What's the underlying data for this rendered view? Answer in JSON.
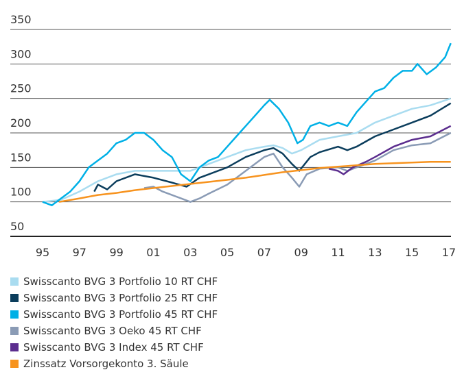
{
  "chart_data": {
    "type": "line",
    "xlim": [
      1995,
      2017
    ],
    "ylim": [
      50,
      350
    ],
    "xticks": [
      {
        "value": 1995,
        "label": "95"
      },
      {
        "value": 1997,
        "label": "97"
      },
      {
        "value": 1999,
        "label": "99"
      },
      {
        "value": 2001,
        "label": "01"
      },
      {
        "value": 2003,
        "label": "03"
      },
      {
        "value": 2005,
        "label": "05"
      },
      {
        "value": 2007,
        "label": "07"
      },
      {
        "value": 2009,
        "label": "09"
      },
      {
        "value": 2011,
        "label": "11"
      },
      {
        "value": 2013,
        "label": "13"
      },
      {
        "value": 2015,
        "label": "15"
      },
      {
        "value": 2017,
        "label": "17"
      }
    ],
    "yticks": [
      50,
      100,
      150,
      200,
      250,
      300,
      350
    ],
    "grid": true,
    "series": [
      {
        "name": "Swisscanto BVG 3 Portfolio 10 RT CHF",
        "color": "#a9dcf0",
        "x": [
          1995,
          1996,
          1997,
          1998,
          1999,
          2000,
          2001,
          2002,
          2003,
          2004,
          2005,
          2006,
          2007,
          2007.5,
          2008,
          2008.5,
          2009,
          2010,
          2011,
          2012,
          2013,
          2014,
          2015,
          2016,
          2017.1
        ],
        "values": [
          100,
          103,
          115,
          130,
          140,
          145,
          145,
          145,
          145,
          155,
          165,
          175,
          180,
          182,
          178,
          170,
          175,
          190,
          195,
          200,
          215,
          225,
          235,
          240,
          250
        ]
      },
      {
        "name": "Swisscanto BVG 3 Portfolio 25 RT CHF",
        "color": "#0b3d5c",
        "x": [
          1997.8,
          1998,
          1998.5,
          1999,
          2000,
          2001,
          2002,
          2002.8,
          2003.5,
          2004,
          2005,
          2006,
          2007,
          2007.5,
          2008,
          2008.5,
          2008.9,
          2009.5,
          2010,
          2011,
          2011.5,
          2012,
          2013,
          2014,
          2015,
          2016,
          2017.1
        ],
        "values": [
          115,
          125,
          118,
          130,
          140,
          135,
          128,
          122,
          135,
          140,
          150,
          165,
          175,
          178,
          170,
          155,
          145,
          165,
          172,
          180,
          175,
          180,
          195,
          205,
          215,
          225,
          243
        ]
      },
      {
        "name": "Swisscanto BVG 3 Portfolio 45 RT CHF",
        "color": "#00b0e6",
        "x": [
          1995,
          1995.5,
          1996,
          1996.5,
          1997,
          1997.5,
          1998,
          1998.5,
          1999,
          1999.5,
          2000,
          2000.5,
          2001,
          2001.5,
          2002,
          2002.5,
          2003,
          2003.5,
          2004,
          2004.5,
          2005,
          2005.5,
          2006,
          2006.5,
          2007,
          2007.3,
          2007.8,
          2008.3,
          2008.8,
          2009.1,
          2009.5,
          2010,
          2010.5,
          2011,
          2011.5,
          2012,
          2012.5,
          2013,
          2013.5,
          2014,
          2014.5,
          2015,
          2015.3,
          2015.8,
          2016.3,
          2016.8,
          2017.1
        ],
        "values": [
          100,
          95,
          105,
          115,
          130,
          150,
          160,
          170,
          185,
          190,
          200,
          200,
          190,
          175,
          165,
          140,
          130,
          150,
          160,
          165,
          180,
          195,
          210,
          225,
          240,
          248,
          235,
          215,
          185,
          190,
          210,
          215,
          210,
          215,
          210,
          230,
          245,
          260,
          265,
          280,
          290,
          290,
          300,
          285,
          295,
          310,
          330
        ]
      },
      {
        "name": "Swisscanto BVG 3 Oeko 45 RT CHF",
        "color": "#8a9bb5",
        "x": [
          2000.5,
          2001,
          2001.5,
          2002,
          2002.5,
          2003,
          2003.5,
          2004,
          2005,
          2006,
          2006.5,
          2007,
          2007.5,
          2008,
          2008.5,
          2008.9,
          2009.3,
          2010,
          2011,
          2011.5,
          2012,
          2013,
          2014,
          2015,
          2016,
          2017.1
        ],
        "values": [
          120,
          122,
          115,
          110,
          105,
          100,
          105,
          112,
          125,
          145,
          155,
          165,
          170,
          150,
          135,
          122,
          140,
          148,
          150,
          145,
          150,
          160,
          175,
          182,
          185,
          200
        ]
      },
      {
        "name": "Swisscanto BVG 3 Index 45 RT CHF",
        "color": "#5b2d8e",
        "x": [
          2010.5,
          2011,
          2011.3,
          2011.8,
          2012.5,
          2013,
          2014,
          2015,
          2016,
          2017.1
        ],
        "values": [
          148,
          145,
          140,
          150,
          158,
          165,
          180,
          190,
          195,
          210
        ]
      },
      {
        "name": "Zinssatz Vorsorgekonto 3. Säule",
        "color": "#f7931e",
        "x": [
          1995.9,
          1997,
          1998,
          1999,
          2000,
          2001,
          2002,
          2003,
          2004,
          2005,
          2006,
          2007,
          2008,
          2009,
          2010,
          2011,
          2012,
          2013,
          2014,
          2015,
          2016,
          2017.1
        ],
        "values": [
          100,
          105,
          110,
          113,
          117,
          120,
          123,
          126,
          129,
          132,
          135,
          139,
          143,
          146,
          149,
          151,
          153,
          155,
          156,
          157,
          158,
          158
        ]
      }
    ]
  }
}
